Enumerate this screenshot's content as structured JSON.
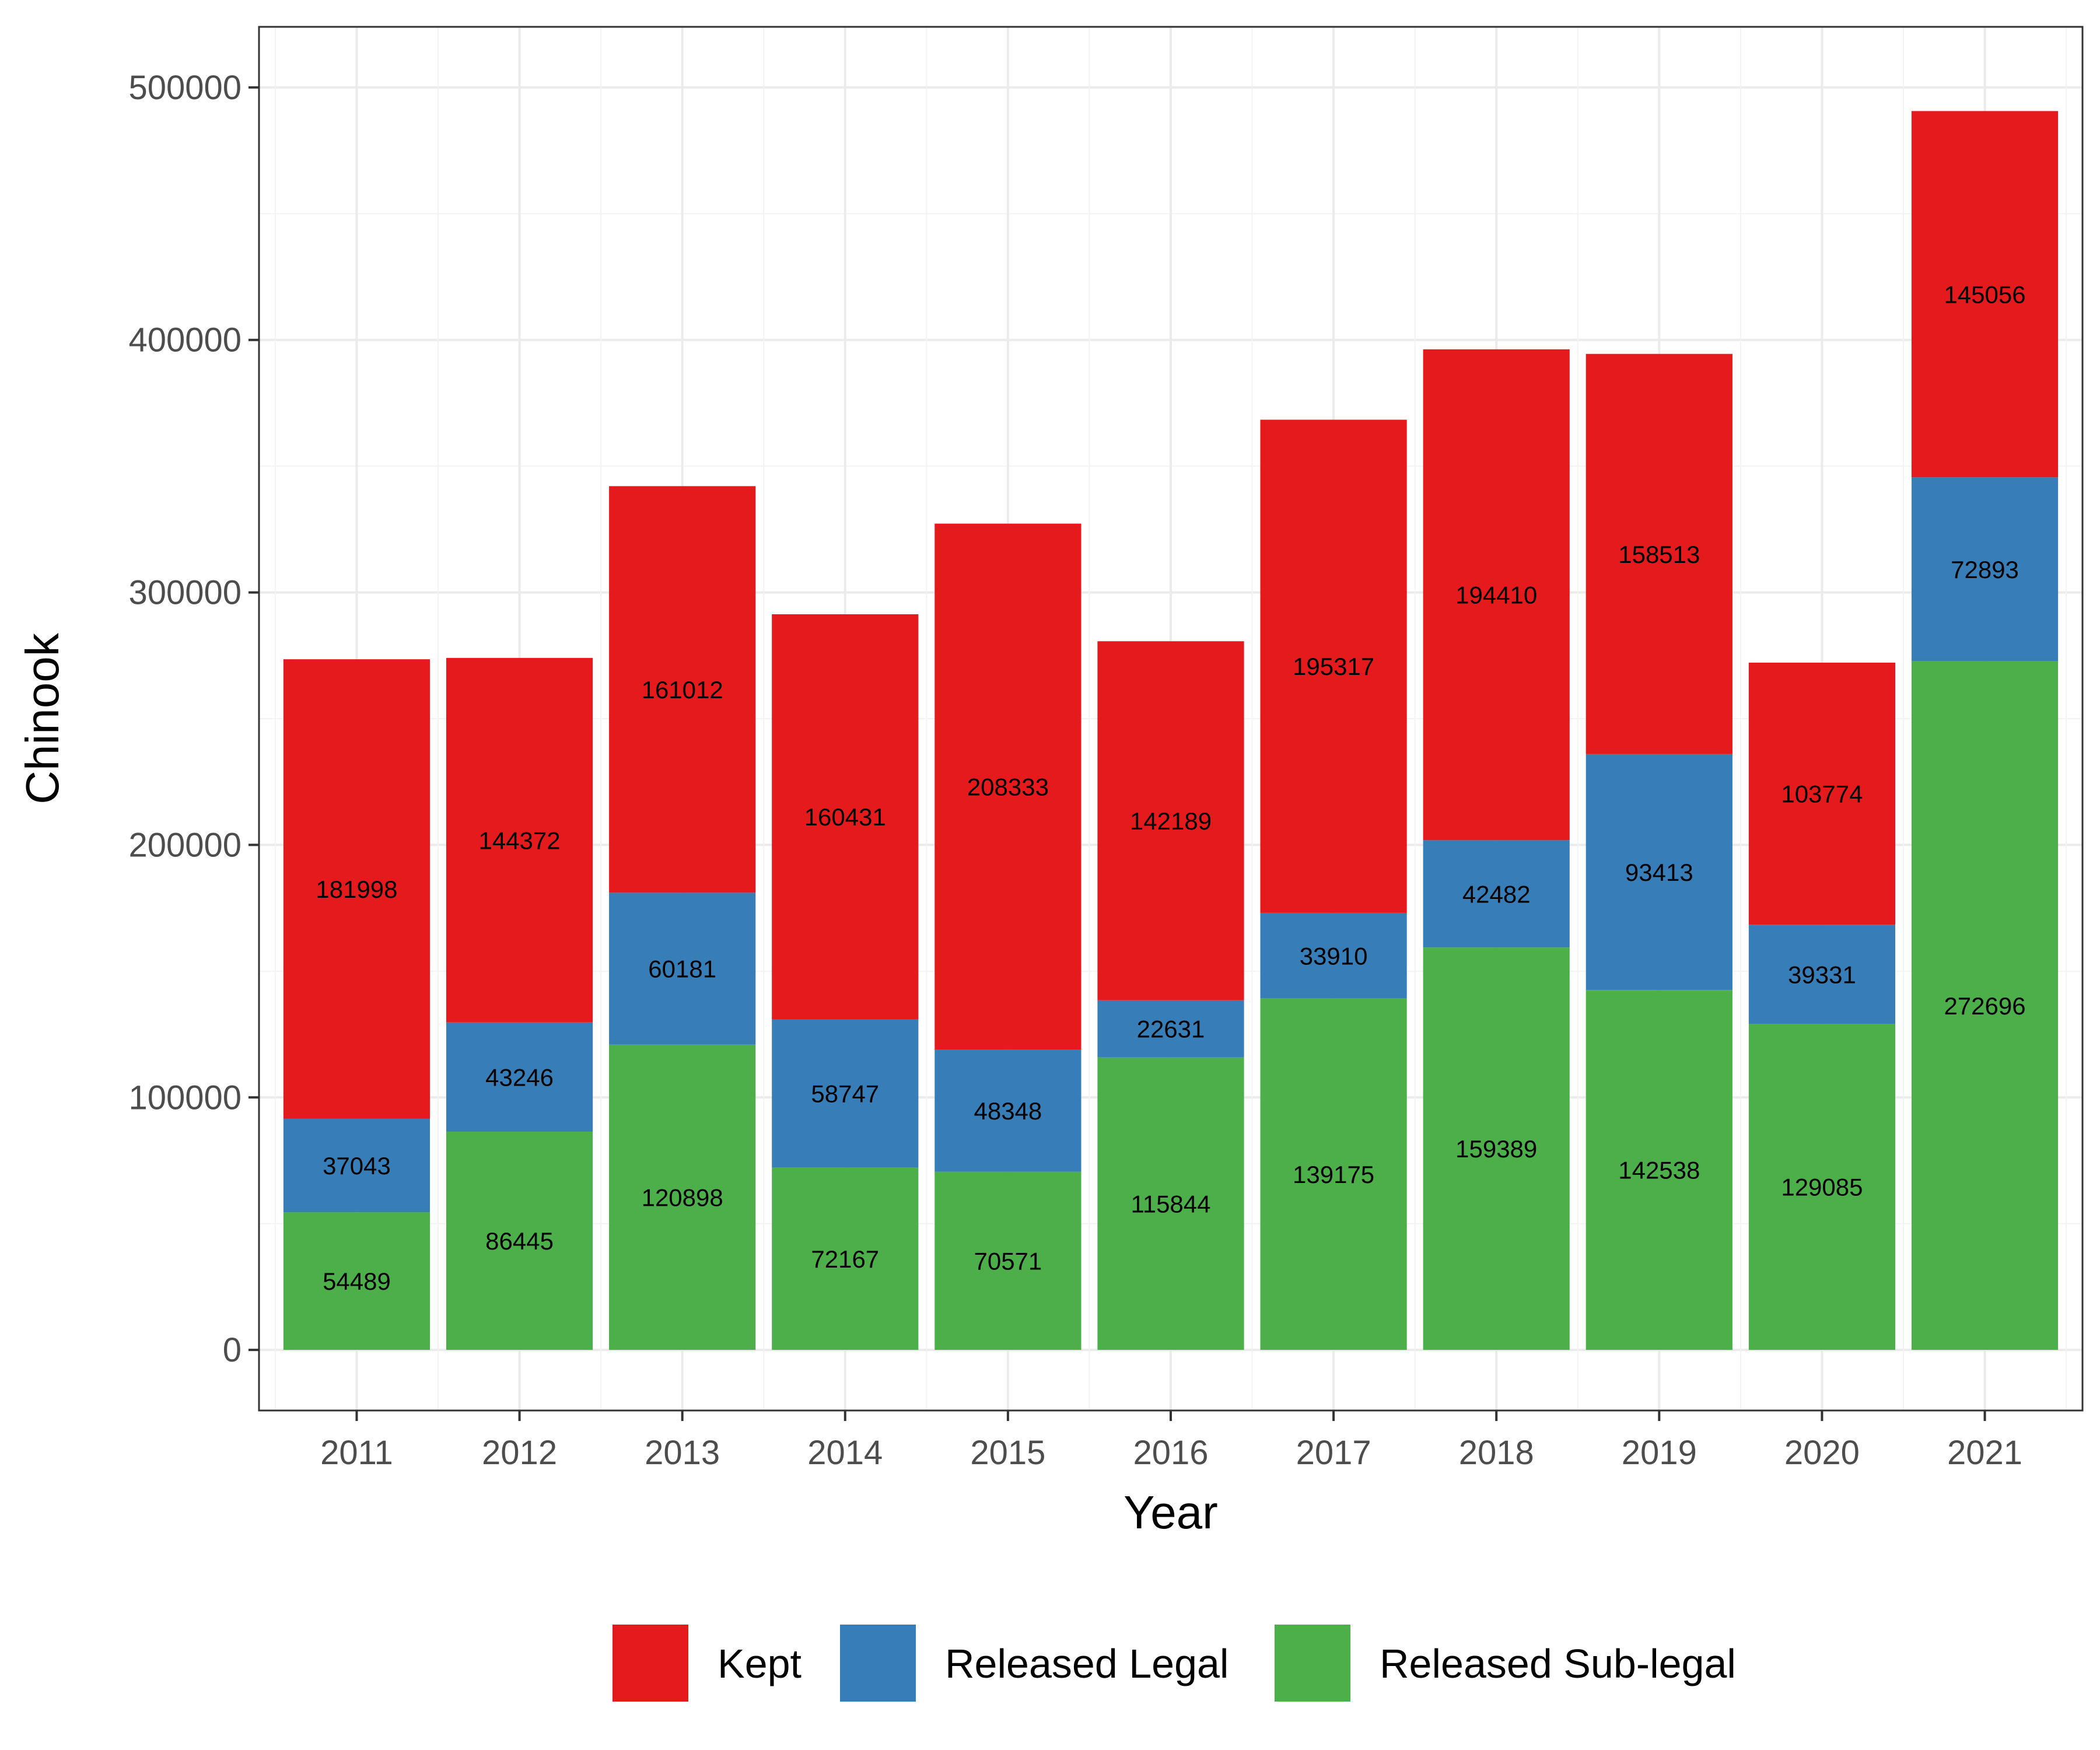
{
  "chart_data": {
    "type": "bar",
    "stacked": true,
    "title": "",
    "xlabel": "Year",
    "ylabel": "Chinook",
    "categories": [
      "2011",
      "2012",
      "2013",
      "2014",
      "2015",
      "2016",
      "2017",
      "2018",
      "2019",
      "2020",
      "2021"
    ],
    "series": [
      {
        "name": "Released Sub-legal",
        "color": "#4daf4a",
        "values": [
          54489,
          86445,
          120898,
          72167,
          70571,
          115844,
          139175,
          159389,
          142538,
          129085,
          272696
        ]
      },
      {
        "name": "Released Legal",
        "color": "#377eb8",
        "values": [
          37043,
          43246,
          60181,
          58747,
          48348,
          22631,
          33910,
          42482,
          93413,
          39331,
          72893
        ]
      },
      {
        "name": "Kept",
        "color": "#e41a1c",
        "values": [
          181998,
          144372,
          161012,
          160431,
          208333,
          142189,
          195317,
          194410,
          158513,
          103774,
          145056
        ]
      }
    ],
    "ylim": [
      -24000,
      524000
    ],
    "yticks": [
      0,
      100000,
      200000,
      300000,
      400000,
      500000
    ],
    "ytick_labels": [
      "0",
      "100000",
      "200000",
      "300000",
      "400000",
      "500000"
    ],
    "grid": true,
    "legend": {
      "position": "bottom",
      "entries": [
        {
          "label": "Kept",
          "color": "#e41a1c"
        },
        {
          "label": "Released Legal",
          "color": "#377eb8"
        },
        {
          "label": "Released Sub-legal",
          "color": "#4daf4a"
        }
      ]
    }
  }
}
